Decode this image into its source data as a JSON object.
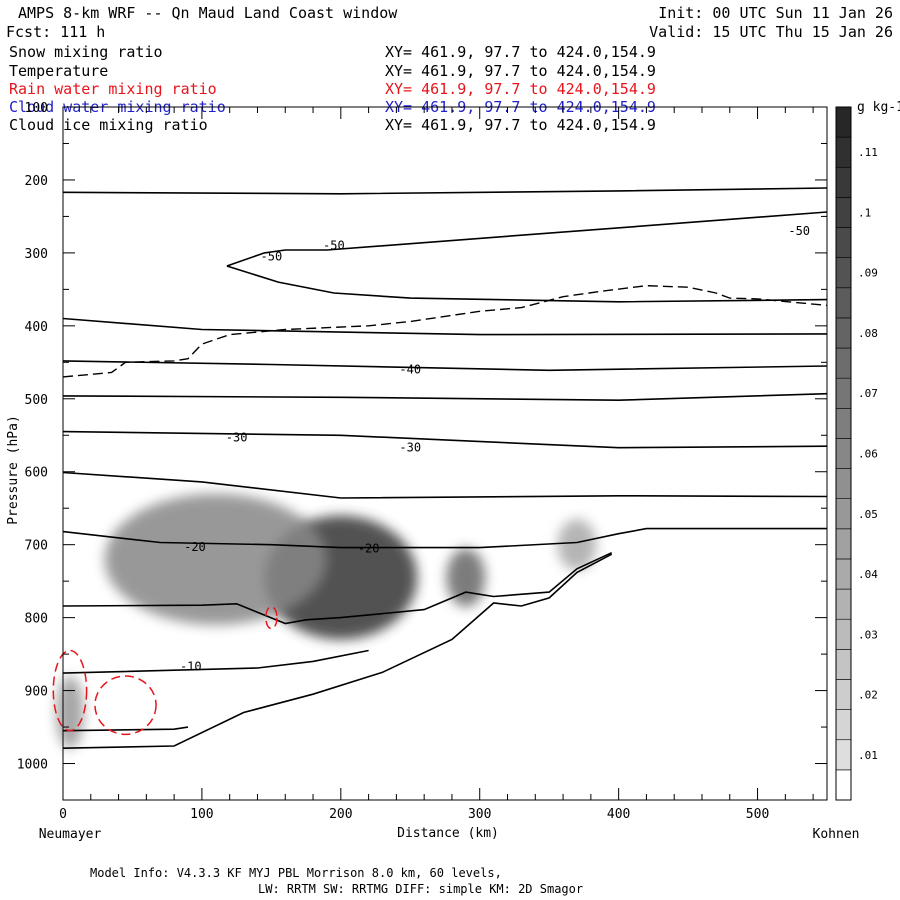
{
  "header": {
    "title": "AMPS 8-km WRF -- Qn Maud Land Coast window",
    "init": "Init: 00 UTC Sun 11 Jan 26",
    "forecast": "Fcst:  111 h",
    "valid": "Valid: 15 UTC Thu 15 Jan 26"
  },
  "fields": [
    {
      "name": "Snow mixing ratio",
      "xy": "XY= 461.9, 97.7 to 424.0,154.9",
      "color": "#000000"
    },
    {
      "name": "Temperature",
      "xy": "XY= 461.9, 97.7 to 424.0,154.9",
      "color": "#000000"
    },
    {
      "name": "Rain water mixing ratio",
      "xy": "XY= 461.9, 97.7 to 424.0,154.9",
      "color": "#e8141c"
    },
    {
      "name": "Cloud water mixing ratio",
      "xy": "XY= 461.9, 97.7 to 424.0,154.9",
      "color": "#2020c8"
    },
    {
      "name": "Cloud ice mixing ratio",
      "xy": "XY= 461.9, 97.7 to 424.0,154.9",
      "color": "#000000"
    }
  ],
  "chart_data": {
    "type": "contour_cross_section",
    "xlabel": "Distance (km)",
    "ylabel": "Pressure (hPa)",
    "xlim": [
      0,
      550
    ],
    "ylim": [
      1050,
      100
    ],
    "x_ticks": [
      0,
      100,
      200,
      300,
      400,
      500
    ],
    "y_ticks": [
      100,
      200,
      300,
      400,
      500,
      600,
      700,
      800,
      900,
      1000
    ],
    "left_endpoint": "Neumayer",
    "right_endpoint": "Kohnen",
    "colorbar": {
      "unit": "g kg-1",
      "ticks": [
        ".01",
        ".02",
        ".03",
        ".04",
        ".05",
        ".06",
        ".07",
        ".08",
        ".09",
        ".1",
        ".11"
      ],
      "range": [
        0.005,
        0.12
      ]
    },
    "temperature_contour_labels": [
      {
        "label": "-50",
        "x": 150,
        "p": 305
      },
      {
        "label": "-50",
        "x": 195,
        "p": 290
      },
      {
        "label": "-50",
        "x": 530,
        "p": 270
      },
      {
        "label": "-40",
        "x": 250,
        "p": 460
      },
      {
        "label": "-30",
        "x": 125,
        "p": 553
      },
      {
        "label": "-30",
        "x": 250,
        "p": 567
      },
      {
        "label": "-20",
        "x": 95,
        "p": 703
      },
      {
        "label": "-20",
        "x": 220,
        "p": 705
      },
      {
        "label": "-10",
        "x": 92,
        "p": 867
      }
    ],
    "temperature_isotherms": [
      [
        [
          0,
          217
        ],
        [
          200,
          219
        ],
        [
          400,
          215
        ],
        [
          550,
          211
        ]
      ],
      [
        [
          118,
          318
        ],
        [
          145,
          300
        ],
        [
          160,
          296
        ],
        [
          190,
          296
        ],
        [
          550,
          244
        ]
      ],
      [
        [
          118,
          318
        ],
        [
          155,
          340
        ],
        [
          195,
          355
        ],
        [
          250,
          362
        ],
        [
          400,
          367
        ],
        [
          550,
          364
        ]
      ],
      [
        [
          0,
          390
        ],
        [
          100,
          405
        ],
        [
          300,
          412
        ],
        [
          550,
          411
        ]
      ],
      [
        [
          0,
          448
        ],
        [
          150,
          453
        ],
        [
          350,
          461
        ],
        [
          550,
          455
        ]
      ],
      [
        [
          0,
          496
        ],
        [
          200,
          498
        ],
        [
          400,
          502
        ],
        [
          550,
          493
        ]
      ],
      [
        [
          0,
          545
        ],
        [
          200,
          550
        ],
        [
          400,
          567
        ],
        [
          550,
          565
        ]
      ],
      [
        [
          0,
          601
        ],
        [
          100,
          614
        ],
        [
          200,
          636
        ],
        [
          400,
          633
        ],
        [
          550,
          634
        ]
      ],
      [
        [
          0,
          682
        ],
        [
          70,
          697
        ],
        [
          150,
          700
        ],
        [
          200,
          704
        ],
        [
          300,
          704
        ],
        [
          370,
          697
        ],
        [
          400,
          685
        ],
        [
          420,
          678
        ],
        [
          550,
          678
        ]
      ],
      [
        [
          0,
          784
        ],
        [
          100,
          783
        ],
        [
          125,
          781
        ],
        [
          160,
          808
        ],
        [
          175,
          803
        ],
        [
          200,
          800
        ],
        [
          260,
          789
        ],
        [
          290,
          765
        ],
        [
          310,
          771
        ],
        [
          350,
          765
        ],
        [
          370,
          733
        ],
        [
          395,
          711
        ]
      ],
      [
        [
          0,
          876
        ],
        [
          140,
          869
        ],
        [
          180,
          860
        ],
        [
          220,
          845
        ]
      ],
      [
        [
          0,
          955
        ],
        [
          80,
          953
        ],
        [
          90,
          950
        ]
      ],
      [
        [
          0,
          979
        ],
        [
          80,
          976
        ],
        [
          130,
          930
        ],
        [
          180,
          905
        ],
        [
          230,
          875
        ],
        [
          280,
          830
        ],
        [
          310,
          780
        ],
        [
          330,
          784
        ],
        [
          350,
          773
        ],
        [
          370,
          738
        ],
        [
          395,
          713
        ]
      ]
    ],
    "ice_boundary": [
      [
        0,
        470
      ],
      [
        35,
        464
      ],
      [
        45,
        450
      ],
      [
        80,
        448
      ],
      [
        90,
        445
      ],
      [
        100,
        425
      ],
      [
        120,
        412
      ],
      [
        160,
        405
      ],
      [
        220,
        400
      ],
      [
        250,
        394
      ],
      [
        300,
        380
      ],
      [
        330,
        375
      ],
      [
        360,
        360
      ],
      [
        390,
        352
      ],
      [
        420,
        345
      ],
      [
        450,
        347
      ],
      [
        470,
        355
      ],
      [
        480,
        362
      ],
      [
        500,
        363
      ],
      [
        550,
        372
      ]
    ],
    "snow_blobs": [
      {
        "x": 200,
        "p": 745,
        "r": 55,
        "rp": 85,
        "q": 0.11
      },
      {
        "x": 110,
        "p": 720,
        "r": 80,
        "rp": 90,
        "q": 0.06
      },
      {
        "x": 290,
        "p": 745,
        "r": 14,
        "rp": 40,
        "q": 0.08
      },
      {
        "x": 370,
        "p": 700,
        "r": 14,
        "rp": 35,
        "q": 0.04
      },
      {
        "x": 5,
        "p": 930,
        "r": 10,
        "rp": 50,
        "q": 0.05
      }
    ],
    "rain_contours": [
      {
        "x": 5,
        "p": 900,
        "r": 12,
        "rp": 55
      },
      {
        "x": 45,
        "p": 920,
        "r": 22,
        "rp": 40
      },
      {
        "x": 150,
        "p": 800,
        "r": 4,
        "rp": 15
      }
    ]
  },
  "footer": {
    "line1": "Model Info: V4.3.3   KF     MYJ PBL  Morrison          8.0 km,  60 levels,",
    "line2": "LW: RRTM SW: RRTMG   DIFF: simple KM: 2D Smagor"
  },
  "colors": {
    "rain": "#e8141c",
    "cloud_water": "#2020c8",
    "frame": "#000000"
  }
}
